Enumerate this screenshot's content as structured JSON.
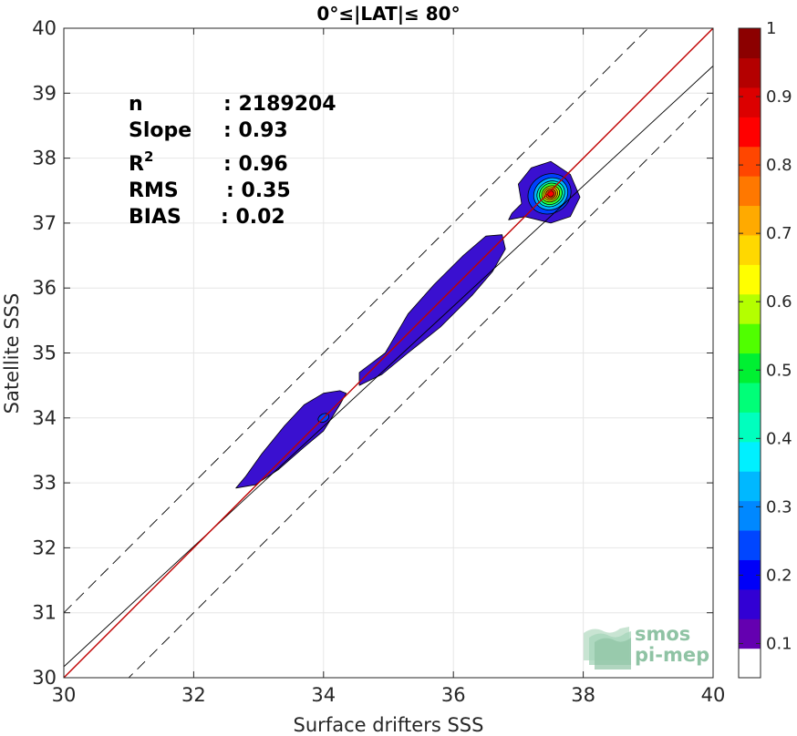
{
  "chart_data": {
    "type": "heatmap",
    "title": "0°≤|LAT|≤ 80°",
    "xlabel": "Surface drifters SSS",
    "ylabel": "Satellite SSS",
    "xlim": [
      30,
      40
    ],
    "ylim": [
      30,
      40
    ],
    "xticks": [
      30,
      32,
      34,
      36,
      38,
      40
    ],
    "yticks": [
      30,
      31,
      32,
      33,
      34,
      35,
      36,
      37,
      38,
      39,
      40
    ],
    "grid": true,
    "stats": [
      {
        "label": "n",
        "value": ": 2189204"
      },
      {
        "label": "Slope",
        "value": ": 0.93"
      },
      {
        "label": "R",
        "sup": "2",
        "value": ": 0.96"
      },
      {
        "label": "RMS",
        "value": ": 0.35"
      },
      {
        "label": "BIAS",
        "value": ": 0.02"
      }
    ],
    "lines": {
      "identity": {
        "slope": 1,
        "intercept": 0,
        "color": "#c00000"
      },
      "fit": {
        "slope": 0.925,
        "intercept": 2.42,
        "color": "#000000"
      },
      "bounds_offset": 1.0
    },
    "density_regions": [
      {
        "polygon": [
          [
            32.65,
            32.92
          ],
          [
            32.95,
            32.97
          ],
          [
            33.3,
            33.2
          ],
          [
            33.7,
            33.55
          ],
          [
            34.0,
            33.8
          ],
          [
            34.25,
            34.2
          ],
          [
            34.35,
            34.38
          ],
          [
            34.25,
            34.42
          ],
          [
            34.0,
            34.38
          ],
          [
            33.7,
            34.2
          ],
          [
            33.4,
            33.88
          ],
          [
            33.05,
            33.45
          ],
          [
            32.8,
            33.1
          ]
        ],
        "level": 0.1
      },
      {
        "polygon": [
          [
            34.55,
            34.5
          ],
          [
            34.9,
            34.67
          ],
          [
            35.3,
            35.0
          ],
          [
            35.8,
            35.4
          ],
          [
            36.3,
            35.9
          ],
          [
            36.6,
            36.25
          ],
          [
            36.8,
            36.6
          ],
          [
            36.75,
            36.82
          ],
          [
            36.5,
            36.8
          ],
          [
            36.15,
            36.5
          ],
          [
            35.7,
            36.05
          ],
          [
            35.3,
            35.6
          ],
          [
            34.95,
            35.0
          ],
          [
            34.75,
            34.85
          ],
          [
            34.55,
            34.7
          ]
        ],
        "level": 0.1
      },
      {
        "polygon": [
          [
            36.85,
            37.05
          ],
          [
            37.1,
            37.1
          ],
          [
            37.5,
            37.0
          ],
          [
            37.8,
            37.1
          ],
          [
            37.95,
            37.4
          ],
          [
            37.8,
            37.75
          ],
          [
            37.5,
            37.95
          ],
          [
            37.2,
            37.85
          ],
          [
            37.0,
            37.6
          ],
          [
            37.05,
            37.3
          ],
          [
            36.9,
            37.15
          ]
        ],
        "level": 0.1
      },
      {
        "ellipse": {
          "cx": 37.48,
          "cy": 37.45,
          "rx": 0.34,
          "ry": 0.3,
          "rot": -30
        },
        "level": 0.2
      },
      {
        "ellipse": {
          "cx": 37.5,
          "cy": 37.45,
          "rx": 0.27,
          "ry": 0.24,
          "rot": -30
        },
        "level": 0.3
      },
      {
        "ellipse": {
          "cx": 37.5,
          "cy": 37.45,
          "rx": 0.22,
          "ry": 0.19,
          "rot": -30
        },
        "level": 0.4
      },
      {
        "ellipse": {
          "cx": 37.5,
          "cy": 37.45,
          "rx": 0.18,
          "ry": 0.16,
          "rot": -30
        },
        "level": 0.5
      },
      {
        "ellipse": {
          "cx": 37.5,
          "cy": 37.45,
          "rx": 0.14,
          "ry": 0.12,
          "rot": -30
        },
        "level": 0.6
      },
      {
        "ellipse": {
          "cx": 37.5,
          "cy": 37.45,
          "rx": 0.11,
          "ry": 0.095,
          "rot": -30
        },
        "level": 0.7
      },
      {
        "ellipse": {
          "cx": 37.5,
          "cy": 37.45,
          "rx": 0.08,
          "ry": 0.07,
          "rot": -30
        },
        "level": 0.8
      },
      {
        "ellipse": {
          "cx": 37.5,
          "cy": 37.45,
          "rx": 0.05,
          "ry": 0.045,
          "rot": -30
        },
        "level": 0.9
      },
      {
        "ellipse": {
          "cx": 34.0,
          "cy": 34.0,
          "rx": 0.09,
          "ry": 0.06,
          "rot": -30
        },
        "level": 0.2
      }
    ],
    "colorbar": {
      "ticks": [
        0.1,
        0.2,
        0.3,
        0.4,
        0.5,
        0.6,
        0.7,
        0.8,
        0.9,
        1
      ],
      "tick_labels": [
        "0.1",
        "0.2",
        "0.3",
        "0.4",
        "0.5",
        "0.6",
        "0.7",
        "0.8",
        "0.9",
        "1"
      ],
      "colors": [
        "#ffffff",
        "#6400b0",
        "#3200d4",
        "#0000f8",
        "#0046ff",
        "#0088ff",
        "#00b8ff",
        "#00f0ff",
        "#00ffbe",
        "#00ff78",
        "#00f032",
        "#50ff00",
        "#b4ff00",
        "#ffff00",
        "#ffd800",
        "#ffaa00",
        "#ff7800",
        "#ff4600",
        "#ff0000",
        "#dc0000",
        "#b40000",
        "#8c0000"
      ]
    },
    "level_colors": {
      "0.1": "#3a10d0",
      "0.2": "#0040ff",
      "0.3": "#00b0ff",
      "0.4": "#00ffc0",
      "0.5": "#30ff30",
      "0.6": "#d0ff00",
      "0.7": "#ffc000",
      "0.8": "#ff6000",
      "0.9": "#ff0000"
    }
  },
  "logo": {
    "line1": "smos",
    "line2": "pi-mep",
    "color": "#8fc3a4"
  }
}
